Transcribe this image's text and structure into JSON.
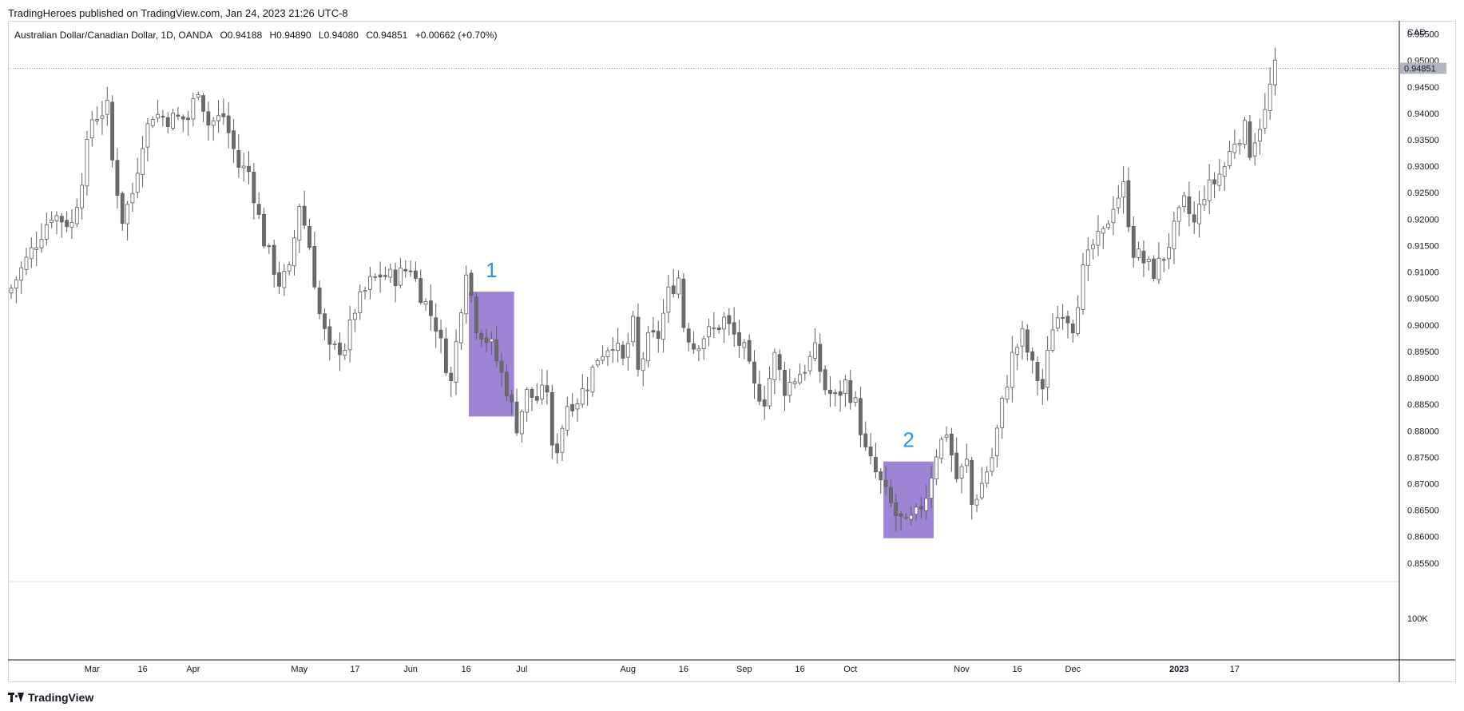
{
  "header": {
    "published_line": "TradingHeroes published on TradingView.com, Jan 24, 2023 21:26 UTC-8"
  },
  "legend": {
    "symbol": "Australian Dollar/Canadian Dollar, 1D, OANDA",
    "open": "O0.94188",
    "high": "H0.94890",
    "low": "L0.94080",
    "close": "C0.94851",
    "change": "+0.00662 (+0.70%)"
  },
  "footer": {
    "brand": "TradingView"
  },
  "colors": {
    "candle_down": "#6b6b6b",
    "candle_up_fill": "#ffffff",
    "candle_outline": "#5d5d5d",
    "box_fill": "#8e6fcf",
    "label_color": "#2196f3",
    "price_badge": "#b2b5be"
  },
  "chart_data": {
    "type": "candlestick",
    "symbol": "Australian Dollar/Canadian Dollar, 1D, OANDA",
    "currency_label": "CAD",
    "y_ticks": [
      "0.95500",
      "0.95000",
      "0.94500",
      "0.94000",
      "0.93500",
      "0.93000",
      "0.92500",
      "0.92000",
      "0.91500",
      "0.91000",
      "0.90500",
      "0.90000",
      "0.89500",
      "0.89000",
      "0.88500",
      "0.88000",
      "0.87500",
      "0.87000",
      "0.86500",
      "0.86000",
      "0.85500"
    ],
    "y_tick_values": [
      0.955,
      0.95,
      0.945,
      0.94,
      0.935,
      0.93,
      0.925,
      0.92,
      0.915,
      0.91,
      0.905,
      0.9,
      0.895,
      0.89,
      0.885,
      0.88,
      0.875,
      0.87,
      0.865,
      0.86,
      0.855
    ],
    "ylim": [
      0.8515,
      0.9575
    ],
    "volume_axis_label": "100K",
    "last_price": "0.94851",
    "last_price_value": 0.94851,
    "x_ticks": [
      {
        "label": "Mar",
        "bar": 16,
        "bold": false
      },
      {
        "label": "16",
        "bar": 26,
        "bold": false
      },
      {
        "label": "Apr",
        "bar": 36,
        "bold": false
      },
      {
        "label": "May",
        "bar": 57,
        "bold": false
      },
      {
        "label": "17",
        "bar": 68,
        "bold": false
      },
      {
        "label": "Jun",
        "bar": 79,
        "bold": false
      },
      {
        "label": "16",
        "bar": 90,
        "bold": false
      },
      {
        "label": "Jul",
        "bar": 101,
        "bold": false
      },
      {
        "label": "Aug",
        "bar": 122,
        "bold": false
      },
      {
        "label": "16",
        "bar": 133,
        "bold": false
      },
      {
        "label": "Sep",
        "bar": 145,
        "bold": false
      },
      {
        "label": "16",
        "bar": 156,
        "bold": false
      },
      {
        "label": "Oct",
        "bar": 166,
        "bold": false
      },
      {
        "label": "Nov",
        "bar": 188,
        "bold": false
      },
      {
        "label": "16",
        "bar": 199,
        "bold": false
      },
      {
        "label": "Dec",
        "bar": 210,
        "bold": false
      },
      {
        "label": "2023",
        "bar": 231,
        "bold": true
      },
      {
        "label": "17",
        "bar": 242,
        "bold": false
      }
    ],
    "annotations": [
      {
        "label": "1",
        "bar_start": 91,
        "bar_end": 99,
        "price_top": 0.9063,
        "price_bottom": 0.8827
      },
      {
        "label": "2",
        "bar_start": 173,
        "bar_end": 182,
        "price_top": 0.8742,
        "price_bottom": 0.8597
      }
    ],
    "anchors": [
      [
        0,
        0.907
      ],
      [
        4,
        0.914
      ],
      [
        8,
        0.921
      ],
      [
        12,
        0.919
      ],
      [
        14,
        0.928
      ],
      [
        16,
        0.939
      ],
      [
        19,
        0.941
      ],
      [
        20,
        0.931
      ],
      [
        22,
        0.92
      ],
      [
        24,
        0.925
      ],
      [
        26,
        0.935
      ],
      [
        28,
        0.94
      ],
      [
        31,
        0.939
      ],
      [
        35,
        0.939
      ],
      [
        37,
        0.945
      ],
      [
        39,
        0.938
      ],
      [
        42,
        0.9395
      ],
      [
        45,
        0.93
      ],
      [
        47,
        0.929
      ],
      [
        50,
        0.916
      ],
      [
        53,
        0.908
      ],
      [
        55,
        0.91
      ],
      [
        57,
        0.923
      ],
      [
        59,
        0.915
      ],
      [
        61,
        0.902
      ],
      [
        63,
        0.895
      ],
      [
        66,
        0.896
      ],
      [
        68,
        0.903
      ],
      [
        71,
        0.908
      ],
      [
        73,
        0.9095
      ],
      [
        76,
        0.909
      ],
      [
        79,
        0.911
      ],
      [
        81,
        0.906
      ],
      [
        84,
        0.9
      ],
      [
        87,
        0.889
      ],
      [
        89,
        0.904
      ],
      [
        90,
        0.911
      ],
      [
        92,
        0.9
      ],
      [
        95,
        0.896
      ],
      [
        98,
        0.888
      ],
      [
        100,
        0.881
      ],
      [
        102,
        0.887
      ],
      [
        104,
        0.886
      ],
      [
        106,
        0.888
      ],
      [
        107,
        0.876
      ],
      [
        108,
        0.877
      ],
      [
        110,
        0.885
      ],
      [
        112,
        0.886
      ],
      [
        114,
        0.889
      ],
      [
        116,
        0.894
      ],
      [
        119,
        0.897
      ],
      [
        121,
        0.893
      ],
      [
        123,
        0.9
      ],
      [
        124,
        0.891
      ],
      [
        126,
        0.897
      ],
      [
        128,
        0.898
      ],
      [
        130,
        0.906
      ],
      [
        132,
        0.909
      ],
      [
        133,
        0.9
      ],
      [
        135,
        0.896
      ],
      [
        137,
        0.898
      ],
      [
        139,
        0.899
      ],
      [
        141,
        0.901
      ],
      [
        143,
        0.898
      ],
      [
        145,
        0.895
      ],
      [
        147,
        0.888
      ],
      [
        149,
        0.886
      ],
      [
        151,
        0.894
      ],
      [
        153,
        0.888
      ],
      [
        155,
        0.89
      ],
      [
        157,
        0.892
      ],
      [
        159,
        0.895
      ],
      [
        161,
        0.888
      ],
      [
        163,
        0.886
      ],
      [
        165,
        0.889
      ],
      [
        167,
        0.885
      ],
      [
        169,
        0.876
      ],
      [
        171,
        0.872
      ],
      [
        173,
        0.868
      ],
      [
        175,
        0.864
      ],
      [
        177,
        0.862
      ],
      [
        179,
        0.864
      ],
      [
        181,
        0.868
      ],
      [
        183,
        0.876
      ],
      [
        185,
        0.88
      ],
      [
        187,
        0.871
      ],
      [
        189,
        0.874
      ],
      [
        190,
        0.866
      ],
      [
        192,
        0.87
      ],
      [
        194,
        0.875
      ],
      [
        196,
        0.885
      ],
      [
        198,
        0.894
      ],
      [
        200,
        0.898
      ],
      [
        202,
        0.892
      ],
      [
        204,
        0.888
      ],
      [
        206,
        0.9
      ],
      [
        208,
        0.903
      ],
      [
        210,
        0.9
      ],
      [
        212,
        0.91
      ],
      [
        214,
        0.915
      ],
      [
        216,
        0.917
      ],
      [
        218,
        0.923
      ],
      [
        220,
        0.926
      ],
      [
        222,
        0.914
      ],
      [
        224,
        0.912
      ],
      [
        226,
        0.91
      ],
      [
        228,
        0.913
      ],
      [
        230,
        0.918
      ],
      [
        232,
        0.923
      ],
      [
        234,
        0.919
      ],
      [
        236,
        0.925
      ],
      [
        238,
        0.927
      ],
      [
        240,
        0.93
      ],
      [
        242,
        0.935
      ],
      [
        244,
        0.937
      ],
      [
        245,
        0.933
      ],
      [
        247,
        0.938
      ],
      [
        248,
        0.94
      ],
      [
        249,
        0.945
      ],
      [
        250,
        0.9485
      ]
    ]
  }
}
